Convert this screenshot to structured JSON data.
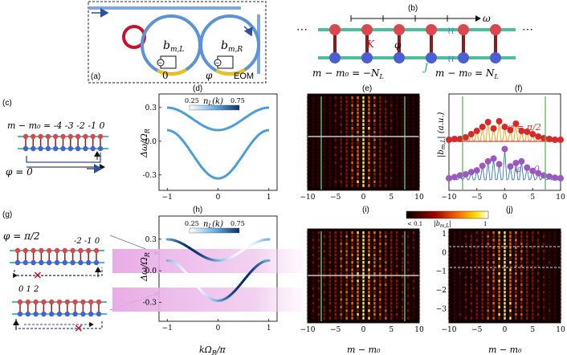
{
  "panels": {
    "a": "(a)",
    "b": "(b)",
    "c": "(c)",
    "d": "(d)",
    "e": "(e)",
    "f": "(f)",
    "g": "(g)",
    "h": "(h)",
    "i": "(i)",
    "j": "(j)"
  },
  "panel_a": {
    "ring_left": "b",
    "ring_left_sub": "m,L",
    "ring_right": "b",
    "ring_right_sub": "m,R",
    "phase_left": "0",
    "phase_right": "φ",
    "eom": "EOM"
  },
  "panel_b": {
    "omega": "ω",
    "K": "K",
    "phi": "φ",
    "J": "J",
    "left_label": "m − m₀ = −N",
    "left_sub": "L",
    "right_label": "m − m₀ = N",
    "right_sub": "L",
    "dots": "⋯"
  },
  "panel_c": {
    "header": "m − m₀ = -4  -3  -2  -1  0",
    "phi": "φ = 0"
  },
  "panel_g": {
    "phi": "φ = π/2",
    "top_idx": "-2  -1  0",
    "bottom_idx": "0   1   2"
  },
  "panel_d": {
    "colorbar_label": "n",
    "colorbar_sub": "L",
    "colorbar_arg": "(k)",
    "cb_min": "0.25",
    "cb_max": "0.75",
    "ylabel": "Δω/Ω",
    "ylabel_sub": "R",
    "yticks": [
      "0.3",
      "0.0",
      "-0.3"
    ],
    "xticks": [
      "−1",
      "0",
      "1"
    ]
  },
  "panel_h": {
    "colorbar_label": "n",
    "colorbar_sub": "L",
    "colorbar_arg": "(k)",
    "cb_min": "0.25",
    "cb_max": "0.75",
    "ylabel": "Δω/Ω",
    "ylabel_sub": "R",
    "yticks": [
      "0.3",
      "0.0",
      "-0.3"
    ],
    "xticks": [
      "−1",
      "0",
      "1"
    ],
    "xlabel": "kΩ",
    "xlabel_sub": "R",
    "xlabel_tail": "/π"
  },
  "panel_e": {
    "xticks": [
      "−10",
      "−5",
      "0",
      "5",
      "10"
    ]
  },
  "panel_i": {
    "xticks": [
      "−10",
      "−5",
      "0",
      "5",
      "10"
    ],
    "xlabel": "m − m₀"
  },
  "panel_f": {
    "ylabel": "|b",
    "ylabel_sub": "m,L",
    "ylabel_tail": "| (a.u.)",
    "label_top": "φ = π/2",
    "label_bottom": "φ = 0",
    "xticks": [
      "−10",
      "−5",
      "0",
      "5",
      "10"
    ]
  },
  "panel_j": {
    "yticks": [
      "1",
      "0",
      "−1",
      "−2",
      "−3"
    ],
    "xticks": [
      "−10",
      "−5",
      "0",
      "5",
      "10"
    ],
    "xlabel": "m − m₀"
  },
  "shared_colorbar": {
    "min": "< 0.1",
    "label": "|b",
    "label_sub": "m,L",
    "label_tail": "|",
    "max": "1"
  },
  "colors": {
    "ring": "#4f8fd6",
    "ring_red": "#c8102e",
    "eom_yellow": "#f2c014",
    "lattice_green": "#4dbfa1",
    "node_red": "#d94850",
    "node_blue": "#4a5fd0",
    "bond_dark": "#8b1a1a",
    "band": "#4a9fd8",
    "pink": "#e9b7e6",
    "orange": "#ff9900",
    "f_red": "#d62a2a",
    "f_purple": "#9b59c0",
    "f_blue": "#2e78c5"
  }
}
